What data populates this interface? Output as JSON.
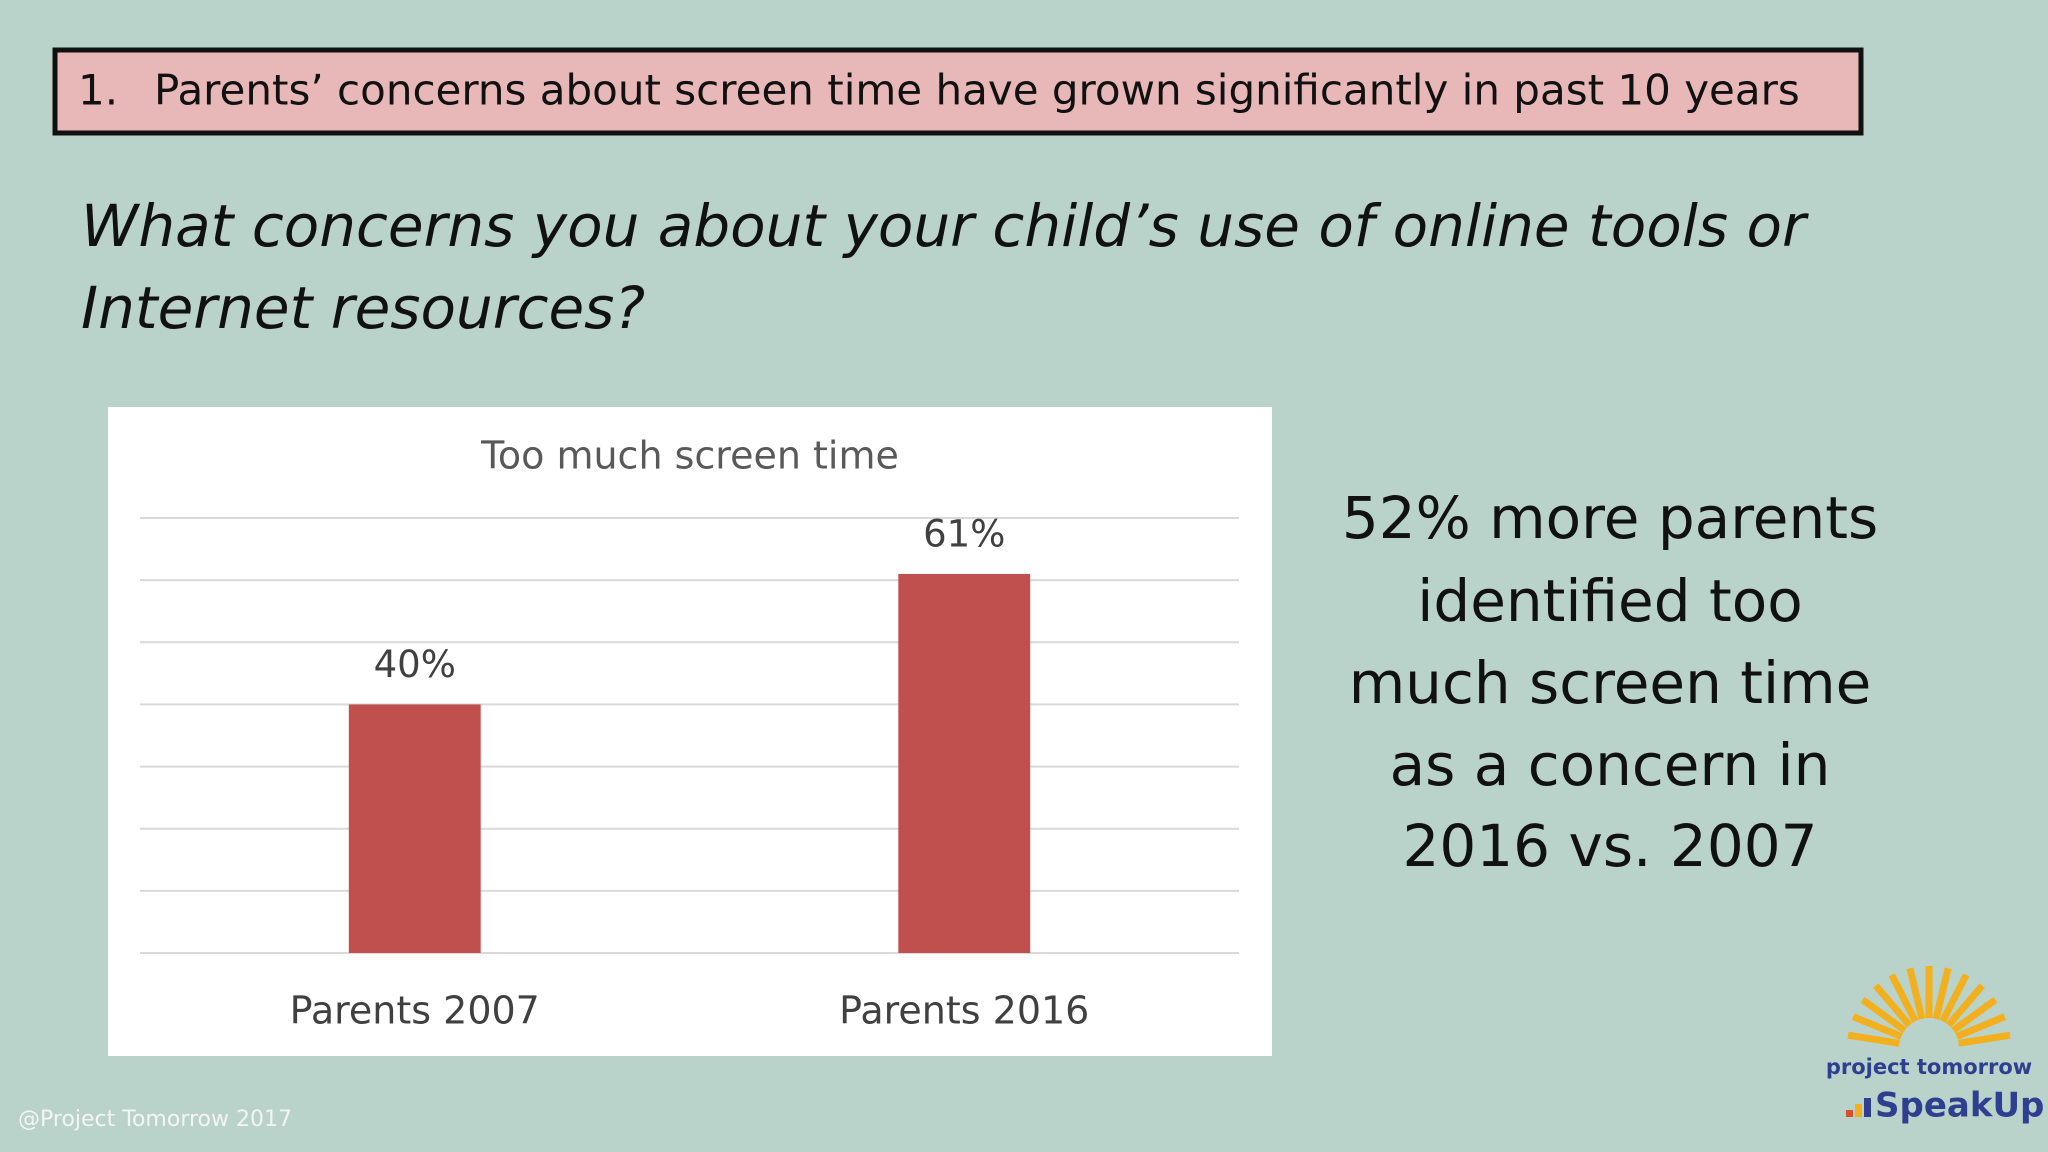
{
  "header": {
    "number": "1.",
    "title": "Parents’ concerns about screen time have grown significantly in past 10 years"
  },
  "question": [
    "What concerns you about your child’s use of online tools or",
    "Internet resources?"
  ],
  "chart_data": {
    "type": "bar",
    "title": "Too much screen time",
    "categories": [
      "Parents 2007",
      "Parents 2016"
    ],
    "values": [
      40,
      61
    ],
    "value_labels": [
      "40%",
      "61%"
    ],
    "color": "#c0504d",
    "ylim": [
      0,
      70
    ],
    "yticks": [
      0,
      10,
      20,
      30,
      40,
      50,
      60,
      70
    ],
    "grid": true
  },
  "side_text": [
    "52% more parents",
    "identified too",
    "much screen time",
    "as a concern in",
    "2016 vs. 2007"
  ],
  "footer": "@Project Tomorrow 2017",
  "logo": {
    "org": "project tomorrow",
    "brand": "SpeakUp"
  }
}
